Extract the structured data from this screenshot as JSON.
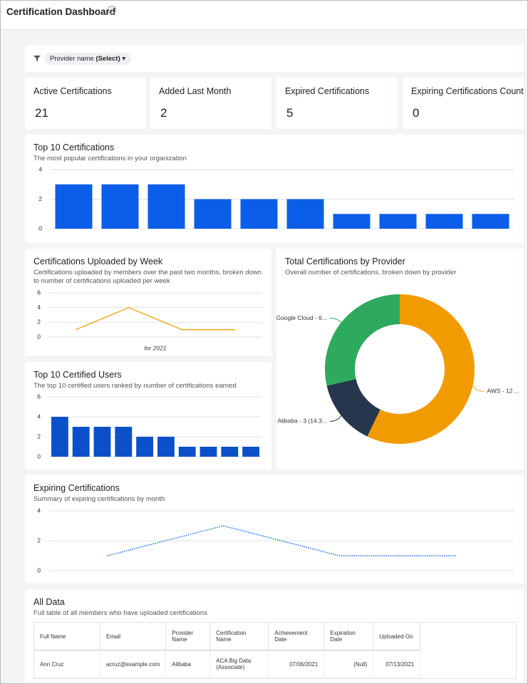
{
  "header": {
    "title": "Certification Dashboard"
  },
  "filter": {
    "label": "Provider name",
    "value": "(Select)"
  },
  "kpis": [
    {
      "label": "Active Certifications",
      "value": 21
    },
    {
      "label": "Added Last Month",
      "value": 2
    },
    {
      "label": "Expired Certifications",
      "value": 5
    },
    {
      "label": "Expiring Certifications Count",
      "value": 0
    }
  ],
  "chart_data": [
    {
      "type": "bar",
      "title": "Top 10 Certifications",
      "subtitle": "The most popular certifications in your organization",
      "values": [
        3,
        3,
        3,
        2,
        2,
        2,
        1,
        1,
        1,
        1
      ],
      "color": "#0b5ee8",
      "ylim": [
        0,
        4
      ],
      "yticks": [
        0,
        2,
        4
      ],
      "grid": true
    },
    {
      "type": "line",
      "title": "Certifications Uploaded by Week",
      "subtitle": "Certifications uploaded by members over the past two months, broken down to number of certifications uploaded per week",
      "x_label": "for 2021",
      "values": [
        1,
        4,
        1,
        1
      ],
      "color": "#f0a000",
      "ylim": [
        0,
        6
      ],
      "yticks": [
        0,
        2,
        4,
        6
      ],
      "grid": true
    },
    {
      "type": "pie",
      "title": "Total Certifications by Provider",
      "subtitle": "Overall number of certifications, broken down by provider",
      "values": [
        12,
        3,
        6
      ],
      "value_labels": [
        "AWS - 12 ...",
        "Alibaba - 3 (14.3...",
        "Google Cloud - 6..."
      ],
      "colors": [
        "#f29b00",
        "#26374d",
        "#2eaa5e"
      ]
    },
    {
      "type": "bar",
      "title": "Top 10 Certified Users",
      "subtitle": "The top 10 certified users ranked by number of certifications earned",
      "values": [
        4,
        3,
        3,
        3,
        2,
        2,
        1,
        1,
        1,
        1
      ],
      "color": "#0b50c9",
      "ylim": [
        0,
        6
      ],
      "yticks": [
        0,
        2,
        4,
        6
      ],
      "grid": true
    },
    {
      "type": "line",
      "title": "Expiring Certifications",
      "subtitle": "Summary of expiring certifications by month",
      "values": [
        1,
        3,
        1,
        1
      ],
      "color": "#1f6fe0",
      "dotted": true,
      "ylim": [
        0,
        4
      ],
      "yticks": [
        0,
        2,
        4
      ],
      "grid": true
    }
  ],
  "table": {
    "title": "All Data",
    "subtitle": "Full table of all members who have uploaded certifications",
    "columns": [
      "Full Name",
      "Email",
      "Provider Name",
      "Certification Name",
      "Achievement Date",
      "Expiration Date",
      "Uploaded On"
    ],
    "rows": [
      [
        "Ann Cruz",
        "acruz@example.com",
        "Alibaba",
        "ACA Big Data (Associate)",
        "07/06/2021",
        "(Null)",
        "07/13/2021"
      ]
    ]
  }
}
